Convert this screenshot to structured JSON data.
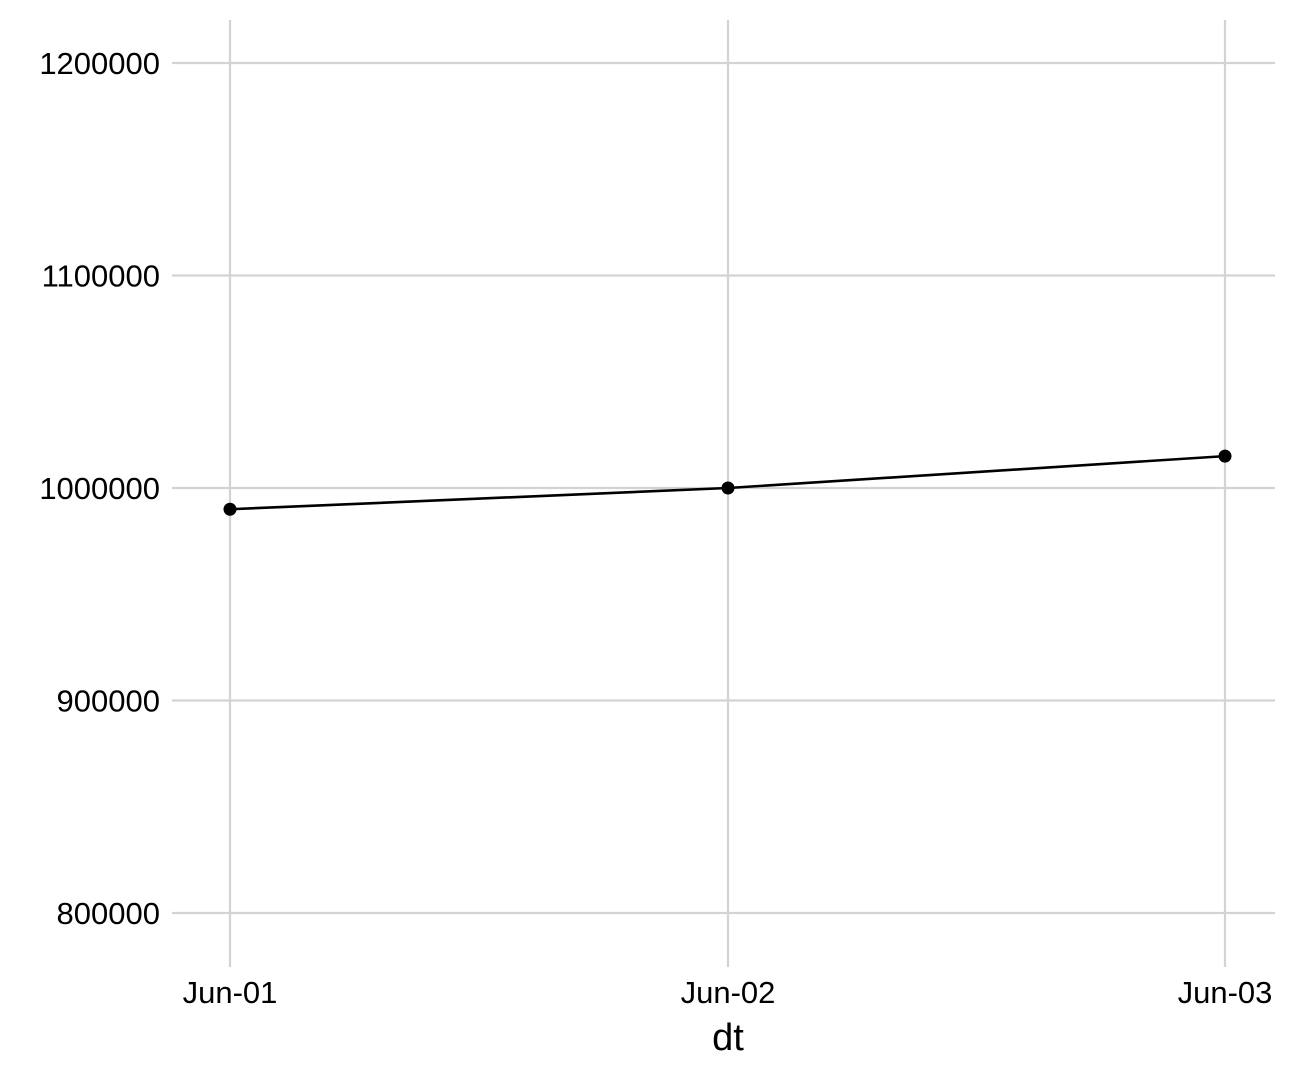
{
  "chart_data": {
    "type": "line",
    "title": "",
    "xlabel": "dt",
    "ylabel": "",
    "categories": [
      "Jun-01",
      "Jun-02",
      "Jun-03"
    ],
    "series": [
      {
        "values": [
          990000,
          1000000,
          1015000
        ]
      }
    ],
    "ylim": [
      780000,
      1220000
    ],
    "yticks": [
      800000,
      900000,
      1000000,
      1100000,
      1200000
    ],
    "ytick_labels": [
      "800000",
      "900000",
      "1000000",
      "1100000",
      "1200000"
    ],
    "grid": true,
    "legend": "none",
    "colors": {
      "line": "#000000",
      "grid": "#d3d3d3",
      "background": "#ffffff"
    }
  }
}
